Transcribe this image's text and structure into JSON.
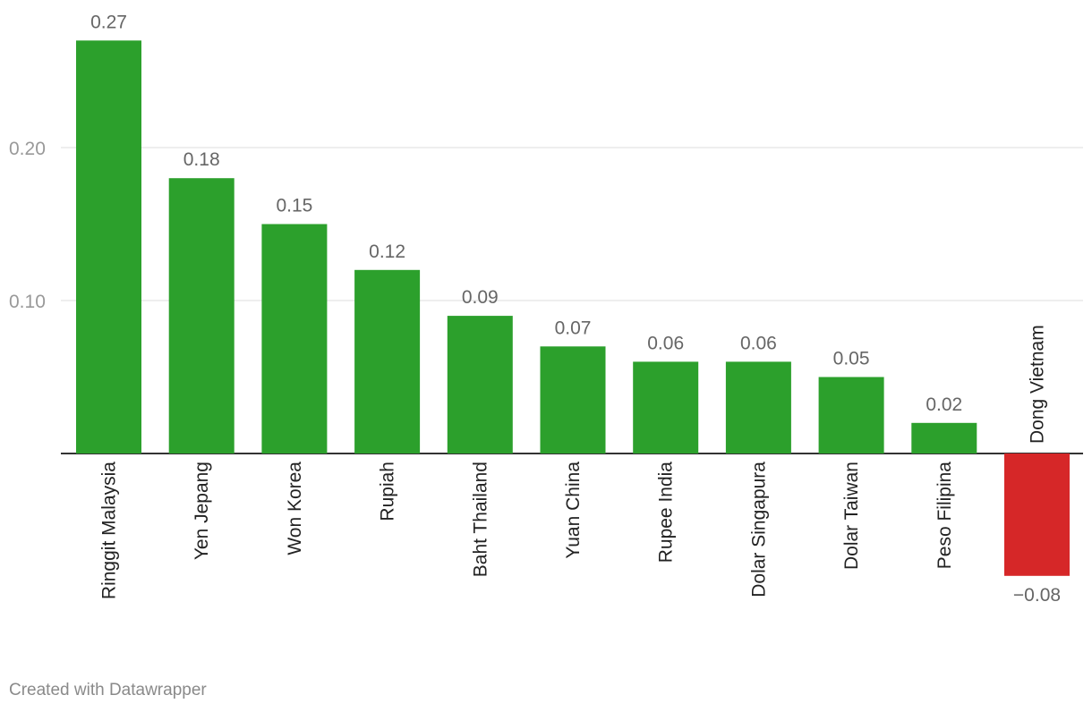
{
  "chart_data": {
    "type": "bar",
    "title": "",
    "xlabel": "",
    "ylabel": "",
    "categories": [
      "Ringgit Malaysia",
      "Yen Jepang",
      "Won Korea",
      "Rupiah",
      "Baht Thailand",
      "Yuan China",
      "Rupee India",
      "Dolar Singapura",
      "Dolar Taiwan",
      "Peso Filipina",
      "Dong Vietnam"
    ],
    "values": [
      0.27,
      0.18,
      0.15,
      0.12,
      0.09,
      0.07,
      0.06,
      0.06,
      0.05,
      0.02,
      -0.08
    ],
    "value_labels": [
      "0.27",
      "0.18",
      "0.15",
      "0.12",
      "0.09",
      "0.07",
      "0.06",
      "0.06",
      "0.05",
      "0.02",
      "−0.08"
    ],
    "y_ticks": [
      0.1,
      0.2
    ],
    "y_tick_labels": [
      "0.10",
      "0.20"
    ],
    "ylim": [
      -0.08,
      0.27
    ],
    "grid": true,
    "colors": {
      "positive": "#2ca02c",
      "negative": "#d62728"
    }
  },
  "footer": {
    "credit": "Created with Datawrapper"
  }
}
